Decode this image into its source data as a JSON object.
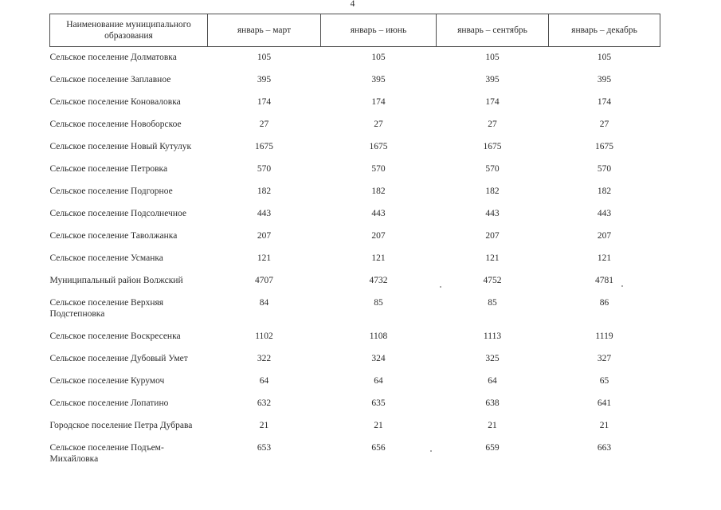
{
  "page": {
    "number": "4"
  },
  "table": {
    "columns": [
      "Наименование муниципального образования",
      "январь – март",
      "январь – июнь",
      "январь – сентябрь",
      "январь – декабрь"
    ],
    "rows": [
      {
        "name": "Сельское поселение Долматовка",
        "values": [
          "105",
          "105",
          "105",
          "105"
        ]
      },
      {
        "name": "Сельское поселение Заплавное",
        "values": [
          "395",
          "395",
          "395",
          "395"
        ]
      },
      {
        "name": "Сельское поселение Коноваловка",
        "values": [
          "174",
          "174",
          "174",
          "174"
        ]
      },
      {
        "name": "Сельское поселение Новоборское",
        "values": [
          "27",
          "27",
          "27",
          "27"
        ]
      },
      {
        "name": "Сельское поселение Новый Кутулук",
        "values": [
          "1675",
          "1675",
          "1675",
          "1675"
        ]
      },
      {
        "name": "Сельское поселение Петровка",
        "values": [
          "570",
          "570",
          "570",
          "570"
        ]
      },
      {
        "name": "Сельское поселение Подгорное",
        "values": [
          "182",
          "182",
          "182",
          "182"
        ]
      },
      {
        "name": "Сельское поселение Подсолнечное",
        "values": [
          "443",
          "443",
          "443",
          "443"
        ]
      },
      {
        "name": "Сельское поселение Таволжанка",
        "values": [
          "207",
          "207",
          "207",
          "207"
        ]
      },
      {
        "name": "Сельское поселение Усманка",
        "values": [
          "121",
          "121",
          "121",
          "121"
        ]
      },
      {
        "name": "Муниципальный район Волжский",
        "values": [
          "4707",
          "4732",
          "4752",
          "4781"
        ]
      },
      {
        "name": "Сельское поселение Верхняя Подстепновка",
        "values": [
          "84",
          "85",
          "85",
          "86"
        ]
      },
      {
        "name": "Сельское поселение Воскресенка",
        "values": [
          "1102",
          "1108",
          "1113",
          "1119"
        ]
      },
      {
        "name": "Сельское поселение Дубовый Умет",
        "values": [
          "322",
          "324",
          "325",
          "327"
        ]
      },
      {
        "name": "Сельское поселение Курумоч",
        "values": [
          "64",
          "64",
          "64",
          "65"
        ]
      },
      {
        "name": "Сельское поселение Лопатино",
        "values": [
          "632",
          "635",
          "638",
          "641"
        ]
      },
      {
        "name": "Городское поселение Петра Дубрава",
        "values": [
          "21",
          "21",
          "21",
          "21"
        ]
      },
      {
        "name": "Сельское поселение Подъем-Михайловка",
        "values": [
          "653",
          "656",
          "659",
          "663"
        ]
      }
    ]
  }
}
